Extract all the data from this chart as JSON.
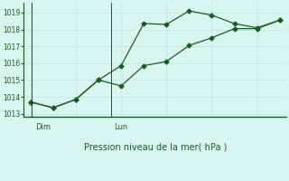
{
  "title": "Pression niveau de la mer( hPa )",
  "background_color": "#d8f5f0",
  "grid_color": "#c0e8e0",
  "line_color": "#1a5c28",
  "spine_color": "#1a5c28",
  "ylim": [
    1012.8,
    1019.6
  ],
  "yticks": [
    1013,
    1014,
    1015,
    1016,
    1017,
    1018,
    1019
  ],
  "series1_x": [
    0,
    1,
    2,
    3,
    4,
    5,
    6,
    7,
    8,
    9,
    10,
    11
  ],
  "series1_y": [
    1013.7,
    1013.35,
    1013.85,
    1015.0,
    1015.85,
    1018.35,
    1018.3,
    1019.1,
    1018.85,
    1018.35,
    1018.1,
    1018.55
  ],
  "series2_x": [
    0,
    1,
    2,
    3,
    4,
    5,
    6,
    7,
    8,
    9,
    10,
    11
  ],
  "series2_y": [
    1013.7,
    1013.35,
    1013.85,
    1015.0,
    1014.65,
    1015.85,
    1016.1,
    1017.05,
    1017.5,
    1018.05,
    1018.05,
    1018.55
  ],
  "xlim": [
    -0.3,
    11.3
  ],
  "dim_x": 0.05,
  "lun_x": 3.55,
  "dim_label": "Dim",
  "lun_label": "Lun",
  "label_fontsize": 6,
  "title_fontsize": 7,
  "ytick_fontsize": 5.5
}
